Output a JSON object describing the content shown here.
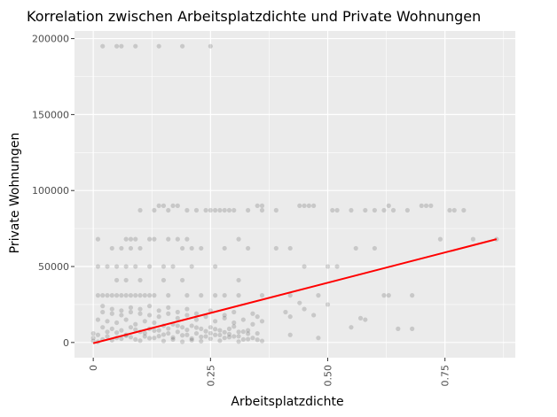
{
  "chart_data": {
    "type": "scatter",
    "title": "Korrelation zwischen Arbeitsplatzdichte und Private Wohnungen",
    "xlabel": "Arbeitsplatzdichte",
    "ylabel": "Private Wohnungen",
    "xlim": [
      -0.04,
      0.9
    ],
    "ylim": [
      -10000,
      205000
    ],
    "x_ticks": [
      0,
      0.25,
      0.5,
      0.75
    ],
    "x_tick_labels": [
      "0",
      "0.25",
      "0.50",
      "0.75"
    ],
    "y_ticks": [
      0,
      50000,
      100000,
      150000,
      200000
    ],
    "y_tick_labels": [
      "0",
      "50000",
      "100000",
      "150000",
      "200000"
    ],
    "grid": true,
    "background": "#ebebeb",
    "point_color": "#000000",
    "point_opacity": 0.15,
    "points": [
      [
        0.02,
        195000
      ],
      [
        0.05,
        195000
      ],
      [
        0.06,
        195000
      ],
      [
        0.09,
        195000
      ],
      [
        0.14,
        195000
      ],
      [
        0.19,
        195000
      ],
      [
        0.25,
        195000
      ],
      [
        0.14,
        90000
      ],
      [
        0.15,
        90000
      ],
      [
        0.17,
        90000
      ],
      [
        0.18,
        90000
      ],
      [
        0.35,
        90000
      ],
      [
        0.36,
        90000
      ],
      [
        0.44,
        90000
      ],
      [
        0.45,
        90000
      ],
      [
        0.46,
        90000
      ],
      [
        0.47,
        90000
      ],
      [
        0.63,
        90000
      ],
      [
        0.7,
        90000
      ],
      [
        0.71,
        90000
      ],
      [
        0.72,
        90000
      ],
      [
        0.1,
        87000
      ],
      [
        0.13,
        87000
      ],
      [
        0.16,
        87000
      ],
      [
        0.2,
        87000
      ],
      [
        0.22,
        87000
      ],
      [
        0.24,
        87000
      ],
      [
        0.25,
        87000
      ],
      [
        0.26,
        87000
      ],
      [
        0.27,
        87000
      ],
      [
        0.28,
        87000
      ],
      [
        0.29,
        87000
      ],
      [
        0.3,
        87000
      ],
      [
        0.33,
        87000
      ],
      [
        0.36,
        87000
      ],
      [
        0.39,
        87000
      ],
      [
        0.51,
        87000
      ],
      [
        0.52,
        87000
      ],
      [
        0.55,
        87000
      ],
      [
        0.58,
        87000
      ],
      [
        0.6,
        87000
      ],
      [
        0.62,
        87000
      ],
      [
        0.64,
        87000
      ],
      [
        0.67,
        87000
      ],
      [
        0.76,
        87000
      ],
      [
        0.77,
        87000
      ],
      [
        0.79,
        87000
      ],
      [
        0.01,
        68000
      ],
      [
        0.07,
        68000
      ],
      [
        0.08,
        68000
      ],
      [
        0.09,
        68000
      ],
      [
        0.12,
        68000
      ],
      [
        0.13,
        68000
      ],
      [
        0.16,
        68000
      ],
      [
        0.18,
        68000
      ],
      [
        0.2,
        68000
      ],
      [
        0.31,
        68000
      ],
      [
        0.74,
        68000
      ],
      [
        0.81,
        68000
      ],
      [
        0.86,
        68000
      ],
      [
        0.04,
        62000
      ],
      [
        0.06,
        62000
      ],
      [
        0.08,
        62000
      ],
      [
        0.1,
        62000
      ],
      [
        0.19,
        62000
      ],
      [
        0.21,
        62000
      ],
      [
        0.23,
        62000
      ],
      [
        0.28,
        62000
      ],
      [
        0.33,
        62000
      ],
      [
        0.39,
        62000
      ],
      [
        0.42,
        62000
      ],
      [
        0.56,
        62000
      ],
      [
        0.6,
        62000
      ],
      [
        0.01,
        50000
      ],
      [
        0.03,
        50000
      ],
      [
        0.05,
        50000
      ],
      [
        0.07,
        50000
      ],
      [
        0.09,
        50000
      ],
      [
        0.12,
        50000
      ],
      [
        0.15,
        50000
      ],
      [
        0.17,
        50000
      ],
      [
        0.21,
        50000
      ],
      [
        0.26,
        50000
      ],
      [
        0.45,
        50000
      ],
      [
        0.5,
        50000
      ],
      [
        0.52,
        50000
      ],
      [
        0.05,
        41000
      ],
      [
        0.07,
        41000
      ],
      [
        0.1,
        41000
      ],
      [
        0.15,
        41000
      ],
      [
        0.19,
        41000
      ],
      [
        0.31,
        41000
      ],
      [
        0.01,
        31000
      ],
      [
        0.02,
        31000
      ],
      [
        0.03,
        31000
      ],
      [
        0.04,
        31000
      ],
      [
        0.05,
        31000
      ],
      [
        0.06,
        31000
      ],
      [
        0.07,
        31000
      ],
      [
        0.08,
        31000
      ],
      [
        0.09,
        31000
      ],
      [
        0.1,
        31000
      ],
      [
        0.11,
        31000
      ],
      [
        0.12,
        31000
      ],
      [
        0.13,
        31000
      ],
      [
        0.16,
        31000
      ],
      [
        0.2,
        31000
      ],
      [
        0.23,
        31000
      ],
      [
        0.26,
        31000
      ],
      [
        0.28,
        31000
      ],
      [
        0.31,
        31000
      ],
      [
        0.36,
        31000
      ],
      [
        0.42,
        31000
      ],
      [
        0.48,
        31000
      ],
      [
        0.62,
        31000
      ],
      [
        0.63,
        31000
      ],
      [
        0.68,
        31000
      ],
      [
        0.44,
        26000
      ],
      [
        0.5,
        25000
      ],
      [
        0.45,
        22000
      ],
      [
        0.41,
        20000
      ],
      [
        0.47,
        18000
      ],
      [
        0.42,
        17000
      ],
      [
        0.57,
        16000
      ],
      [
        0.58,
        15000
      ],
      [
        0.42,
        5000
      ],
      [
        0.48,
        3000
      ],
      [
        0.55,
        10000
      ],
      [
        0.65,
        9000
      ],
      [
        0.68,
        9000
      ],
      [
        0.02,
        20000
      ],
      [
        0.04,
        19000
      ],
      [
        0.06,
        18000
      ],
      [
        0.08,
        20000
      ],
      [
        0.1,
        19000
      ],
      [
        0.12,
        18000
      ],
      [
        0.14,
        17000
      ],
      [
        0.16,
        19000
      ],
      [
        0.18,
        16000
      ],
      [
        0.2,
        18000
      ],
      [
        0.22,
        15000
      ],
      [
        0.24,
        17000
      ],
      [
        0.26,
        14000
      ],
      [
        0.28,
        16000
      ],
      [
        0.3,
        13000
      ],
      [
        0.32,
        15000
      ],
      [
        0.34,
        12000
      ],
      [
        0.36,
        14000
      ],
      [
        0.01,
        15000
      ],
      [
        0.03,
        14000
      ],
      [
        0.05,
        13000
      ],
      [
        0.07,
        15000
      ],
      [
        0.09,
        12000
      ],
      [
        0.11,
        14000
      ],
      [
        0.13,
        13000
      ],
      [
        0.15,
        11000
      ],
      [
        0.17,
        12000
      ],
      [
        0.19,
        10000
      ],
      [
        0.21,
        11000
      ],
      [
        0.23,
        9000
      ],
      [
        0.25,
        10000
      ],
      [
        0.27,
        8000
      ],
      [
        0.29,
        9000
      ],
      [
        0.31,
        7000
      ],
      [
        0.33,
        8000
      ],
      [
        0.35,
        6000
      ],
      [
        0.02,
        10000
      ],
      [
        0.04,
        9000
      ],
      [
        0.06,
        8000
      ],
      [
        0.08,
        10000
      ],
      [
        0.1,
        7000
      ],
      [
        0.12,
        9000
      ],
      [
        0.14,
        8000
      ],
      [
        0.16,
        6000
      ],
      [
        0.18,
        7000
      ],
      [
        0.2,
        5000
      ],
      [
        0.22,
        6000
      ],
      [
        0.24,
        4000
      ],
      [
        0.26,
        5000
      ],
      [
        0.28,
        3000
      ],
      [
        0.3,
        4000
      ],
      [
        0.32,
        2000
      ],
      [
        0.34,
        3000
      ],
      [
        0.36,
        1000
      ],
      [
        0.01,
        5000
      ],
      [
        0.03,
        4000
      ],
      [
        0.05,
        3000
      ],
      [
        0.07,
        5000
      ],
      [
        0.09,
        2000
      ],
      [
        0.11,
        4000
      ],
      [
        0.13,
        3000
      ],
      [
        0.15,
        1000
      ],
      [
        0.17,
        2000
      ],
      [
        0.19,
        500
      ],
      [
        0.21,
        1500
      ],
      [
        0.23,
        800
      ],
      [
        0.25,
        2500
      ],
      [
        0.27,
        1200
      ],
      [
        0.29,
        3500
      ],
      [
        0.31,
        600
      ],
      [
        0.33,
        2200
      ],
      [
        0.35,
        1800
      ],
      [
        0.0,
        1000
      ],
      [
        0.0,
        3000
      ],
      [
        0.0,
        6000
      ],
      [
        0.01,
        500
      ],
      [
        0.02,
        2000
      ],
      [
        0.03,
        7000
      ],
      [
        0.04,
        1500
      ],
      [
        0.05,
        6500
      ],
      [
        0.06,
        2500
      ],
      [
        0.07,
        4500
      ],
      [
        0.08,
        3500
      ],
      [
        0.09,
        8500
      ],
      [
        0.1,
        1200
      ],
      [
        0.11,
        6200
      ],
      [
        0.12,
        2800
      ],
      [
        0.13,
        7800
      ],
      [
        0.14,
        4200
      ],
      [
        0.15,
        5200
      ],
      [
        0.16,
        9200
      ],
      [
        0.17,
        3300
      ],
      [
        0.18,
        11000
      ],
      [
        0.19,
        4700
      ],
      [
        0.2,
        8300
      ],
      [
        0.21,
        2600
      ],
      [
        0.22,
        9800
      ],
      [
        0.23,
        3700
      ],
      [
        0.24,
        7400
      ],
      [
        0.25,
        6100
      ],
      [
        0.26,
        8800
      ],
      [
        0.27,
        4900
      ],
      [
        0.28,
        6700
      ],
      [
        0.29,
        5500
      ],
      [
        0.3,
        10500
      ],
      [
        0.31,
        4100
      ],
      [
        0.32,
        7100
      ],
      [
        0.33,
        5800
      ],
      [
        0.02,
        24000
      ],
      [
        0.04,
        22000
      ],
      [
        0.06,
        21000
      ],
      [
        0.08,
        23000
      ],
      [
        0.1,
        22000
      ],
      [
        0.12,
        24000
      ],
      [
        0.14,
        21000
      ],
      [
        0.16,
        23000
      ],
      [
        0.18,
        20000
      ],
      [
        0.2,
        22000
      ],
      [
        0.22,
        19000
      ],
      [
        0.25,
        21000
      ],
      [
        0.28,
        18000
      ],
      [
        0.3,
        20000
      ],
      [
        0.34,
        19000
      ],
      [
        0.35,
        17000
      ]
    ],
    "regression_line": {
      "color": "#ff0000",
      "x": [
        0,
        0.86
      ],
      "y": [
        -500,
        68000
      ]
    }
  }
}
